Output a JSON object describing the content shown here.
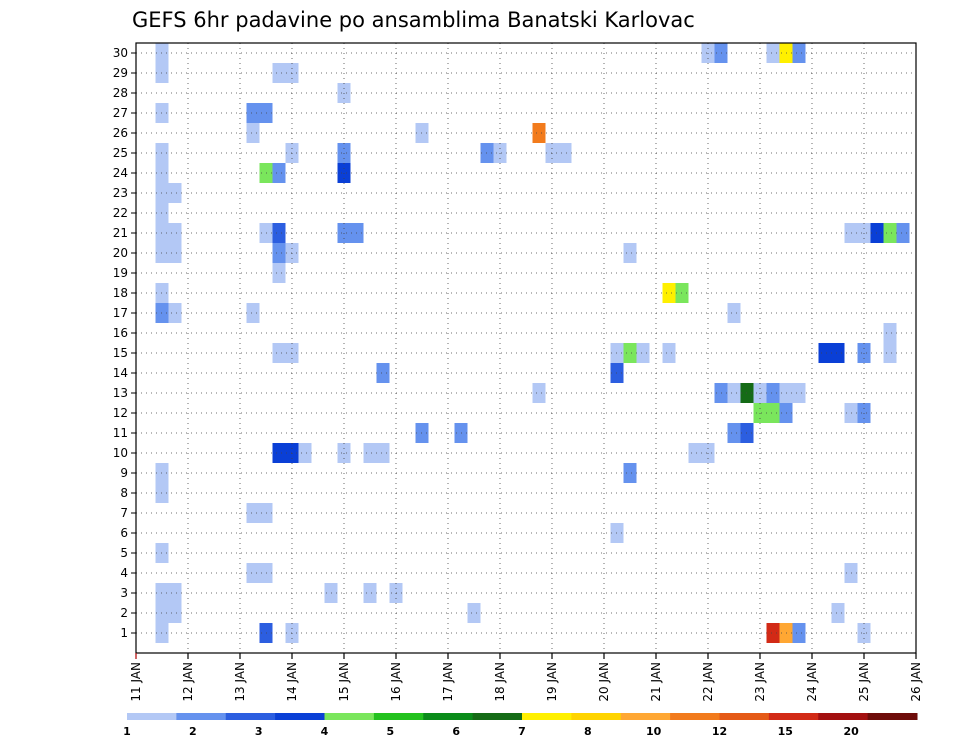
{
  "chart_data": {
    "type": "heatmap",
    "title": "GEFS 6hr padavine po ansamblima Banatski Karlovac",
    "xlabel": "",
    "ylabel": "",
    "x_range_days": [
      11,
      26
    ],
    "x_tick_labels": [
      "11 JAN",
      "12 JAN",
      "13 JAN",
      "14 JAN",
      "15 JAN",
      "16 JAN",
      "17 JAN",
      "18 JAN",
      "19 JAN",
      "20 JAN",
      "21 JAN",
      "22 JAN",
      "23 JAN",
      "24 JAN",
      "25 JAN",
      "26 JAN"
    ],
    "y_tick_labels": [
      "1",
      "2",
      "3",
      "4",
      "5",
      "6",
      "7",
      "8",
      "9",
      "10",
      "11",
      "12",
      "13",
      "14",
      "15",
      "16",
      "17",
      "18",
      "19",
      "20",
      "21",
      "22",
      "23",
      "24",
      "25",
      "26",
      "27",
      "28",
      "29",
      "30"
    ],
    "colorbar": {
      "colors": [
        "#b3c8f5",
        "#6592ee",
        "#2c5ee0",
        "#0a3fd6",
        "#7ae65c",
        "#23c21e",
        "#0a8c1a",
        "#156b16",
        "#fff000",
        "#ffd400",
        "#ffa733",
        "#f27b1c",
        "#e55a16",
        "#d22a16",
        "#a31010",
        "#6e0c0a"
      ],
      "labels": [
        "1",
        "2",
        "3",
        "4",
        "5",
        "6",
        "7",
        "8",
        "10",
        "12",
        "15",
        "20"
      ],
      "label_positions": [
        0,
        2,
        4,
        6,
        8,
        10,
        12,
        14,
        16,
        18,
        20,
        22
      ]
    },
    "cells": [
      {
        "member": 1,
        "day": 11.5,
        "cls": 0
      },
      {
        "member": 1,
        "day": 13.5,
        "cls": 2
      },
      {
        "member": 1,
        "day": 14.0,
        "cls": 0
      },
      {
        "member": 1,
        "day": 23.25,
        "cls": 13
      },
      {
        "member": 1,
        "day": 23.5,
        "cls": 10
      },
      {
        "member": 1,
        "day": 23.75,
        "cls": 1
      },
      {
        "member": 1,
        "day": 25.0,
        "cls": 0
      },
      {
        "member": 2,
        "day": 11.5,
        "cls": 0
      },
      {
        "member": 2,
        "day": 11.75,
        "cls": 0
      },
      {
        "member": 2,
        "day": 17.5,
        "cls": 0
      },
      {
        "member": 2,
        "day": 24.5,
        "cls": 0
      },
      {
        "member": 3,
        "day": 11.5,
        "cls": 0
      },
      {
        "member": 3,
        "day": 11.75,
        "cls": 0
      },
      {
        "member": 3,
        "day": 14.75,
        "cls": 0
      },
      {
        "member": 3,
        "day": 15.5,
        "cls": 0
      },
      {
        "member": 3,
        "day": 16.0,
        "cls": 0
      },
      {
        "member": 4,
        "day": 13.25,
        "cls": 0
      },
      {
        "member": 4,
        "day": 13.5,
        "cls": 0
      },
      {
        "member": 4,
        "day": 24.75,
        "cls": 0
      },
      {
        "member": 5,
        "day": 11.5,
        "cls": 0
      },
      {
        "member": 6,
        "day": 20.25,
        "cls": 0
      },
      {
        "member": 7,
        "day": 13.25,
        "cls": 0
      },
      {
        "member": 7,
        "day": 13.5,
        "cls": 0
      },
      {
        "member": 8,
        "day": 11.5,
        "cls": 0
      },
      {
        "member": 9,
        "day": 11.5,
        "cls": 0
      },
      {
        "member": 9,
        "day": 20.5,
        "cls": 1
      },
      {
        "member": 10,
        "day": 13.75,
        "cls": 3
      },
      {
        "member": 10,
        "day": 14.0,
        "cls": 3
      },
      {
        "member": 10,
        "day": 14.25,
        "cls": 0
      },
      {
        "member": 10,
        "day": 15.0,
        "cls": 0
      },
      {
        "member": 10,
        "day": 15.5,
        "cls": 0
      },
      {
        "member": 10,
        "day": 15.75,
        "cls": 0
      },
      {
        "member": 10,
        "day": 21.75,
        "cls": 0
      },
      {
        "member": 10,
        "day": 22.0,
        "cls": 0
      },
      {
        "member": 11,
        "day": 16.5,
        "cls": 1
      },
      {
        "member": 11,
        "day": 17.25,
        "cls": 1
      },
      {
        "member": 11,
        "day": 22.5,
        "cls": 1
      },
      {
        "member": 11,
        "day": 22.75,
        "cls": 2
      },
      {
        "member": 12,
        "day": 23.0,
        "cls": 4
      },
      {
        "member": 12,
        "day": 23.25,
        "cls": 4
      },
      {
        "member": 12,
        "day": 23.5,
        "cls": 1
      },
      {
        "member": 12,
        "day": 24.75,
        "cls": 0
      },
      {
        "member": 12,
        "day": 25.0,
        "cls": 1
      },
      {
        "member": 13,
        "day": 18.75,
        "cls": 0
      },
      {
        "member": 13,
        "day": 22.25,
        "cls": 1
      },
      {
        "member": 13,
        "day": 22.5,
        "cls": 0
      },
      {
        "member": 13,
        "day": 22.75,
        "cls": 7
      },
      {
        "member": 13,
        "day": 23.0,
        "cls": 0
      },
      {
        "member": 13,
        "day": 23.25,
        "cls": 1
      },
      {
        "member": 13,
        "day": 23.5,
        "cls": 0
      },
      {
        "member": 13,
        "day": 23.75,
        "cls": 0
      },
      {
        "member": 14,
        "day": 15.75,
        "cls": 1
      },
      {
        "member": 14,
        "day": 20.25,
        "cls": 2
      },
      {
        "member": 15,
        "day": 13.75,
        "cls": 0
      },
      {
        "member": 15,
        "day": 14.0,
        "cls": 0
      },
      {
        "member": 15,
        "day": 20.25,
        "cls": 0
      },
      {
        "member": 15,
        "day": 20.5,
        "cls": 4
      },
      {
        "member": 15,
        "day": 20.75,
        "cls": 0
      },
      {
        "member": 15,
        "day": 21.25,
        "cls": 0
      },
      {
        "member": 15,
        "day": 24.25,
        "cls": 3
      },
      {
        "member": 15,
        "day": 24.5,
        "cls": 3
      },
      {
        "member": 15,
        "day": 25.0,
        "cls": 1
      },
      {
        "member": 15,
        "day": 25.5,
        "cls": 0
      },
      {
        "member": 16,
        "day": 25.5,
        "cls": 0
      },
      {
        "member": 17,
        "day": 11.5,
        "cls": 1
      },
      {
        "member": 17,
        "day": 11.75,
        "cls": 0
      },
      {
        "member": 17,
        "day": 13.25,
        "cls": 0
      },
      {
        "member": 17,
        "day": 22.5,
        "cls": 0
      },
      {
        "member": 18,
        "day": 11.5,
        "cls": 0
      },
      {
        "member": 18,
        "day": 21.25,
        "cls": 8
      },
      {
        "member": 18,
        "day": 21.5,
        "cls": 4
      },
      {
        "member": 19,
        "day": 13.75,
        "cls": 0
      },
      {
        "member": 20,
        "day": 11.5,
        "cls": 0
      },
      {
        "member": 20,
        "day": 11.75,
        "cls": 0
      },
      {
        "member": 20,
        "day": 13.75,
        "cls": 1
      },
      {
        "member": 20,
        "day": 14.0,
        "cls": 0
      },
      {
        "member": 20,
        "day": 20.5,
        "cls": 0
      },
      {
        "member": 21,
        "day": 11.5,
        "cls": 0
      },
      {
        "member": 21,
        "day": 11.75,
        "cls": 0
      },
      {
        "member": 21,
        "day": 13.5,
        "cls": 0
      },
      {
        "member": 21,
        "day": 13.75,
        "cls": 2
      },
      {
        "member": 21,
        "day": 15.0,
        "cls": 1
      },
      {
        "member": 21,
        "day": 15.25,
        "cls": 1
      },
      {
        "member": 21,
        "day": 24.75,
        "cls": 0
      },
      {
        "member": 21,
        "day": 25.0,
        "cls": 0
      },
      {
        "member": 21,
        "day": 25.25,
        "cls": 3
      },
      {
        "member": 21,
        "day": 25.5,
        "cls": 4
      },
      {
        "member": 21,
        "day": 25.75,
        "cls": 1
      },
      {
        "member": 22,
        "day": 11.5,
        "cls": 0
      },
      {
        "member": 23,
        "day": 11.5,
        "cls": 0
      },
      {
        "member": 23,
        "day": 11.75,
        "cls": 0
      },
      {
        "member": 24,
        "day": 11.5,
        "cls": 0
      },
      {
        "member": 24,
        "day": 13.5,
        "cls": 4
      },
      {
        "member": 24,
        "day": 13.75,
        "cls": 1
      },
      {
        "member": 24,
        "day": 15.0,
        "cls": 3
      },
      {
        "member": 25,
        "day": 11.5,
        "cls": 0
      },
      {
        "member": 25,
        "day": 14.0,
        "cls": 0
      },
      {
        "member": 25,
        "day": 15.0,
        "cls": 1
      },
      {
        "member": 25,
        "day": 17.75,
        "cls": 1
      },
      {
        "member": 25,
        "day": 18.0,
        "cls": 0
      },
      {
        "member": 25,
        "day": 19.0,
        "cls": 0
      },
      {
        "member": 25,
        "day": 19.25,
        "cls": 0
      },
      {
        "member": 26,
        "day": 13.25,
        "cls": 0
      },
      {
        "member": 26,
        "day": 16.5,
        "cls": 0
      },
      {
        "member": 26,
        "day": 18.75,
        "cls": 11
      },
      {
        "member": 27,
        "day": 11.5,
        "cls": 0
      },
      {
        "member": 27,
        "day": 13.25,
        "cls": 1
      },
      {
        "member": 27,
        "day": 13.5,
        "cls": 1
      },
      {
        "member": 28,
        "day": 15.0,
        "cls": 0
      },
      {
        "member": 29,
        "day": 11.5,
        "cls": 0
      },
      {
        "member": 29,
        "day": 13.75,
        "cls": 0
      },
      {
        "member": 29,
        "day": 14.0,
        "cls": 0
      },
      {
        "member": 30,
        "day": 11.5,
        "cls": 0
      },
      {
        "member": 30,
        "day": 22.0,
        "cls": 0
      },
      {
        "member": 30,
        "day": 22.25,
        "cls": 1
      },
      {
        "member": 30,
        "day": 23.25,
        "cls": 0
      },
      {
        "member": 30,
        "day": 23.5,
        "cls": 8
      },
      {
        "member": 30,
        "day": 23.75,
        "cls": 1
      }
    ]
  }
}
